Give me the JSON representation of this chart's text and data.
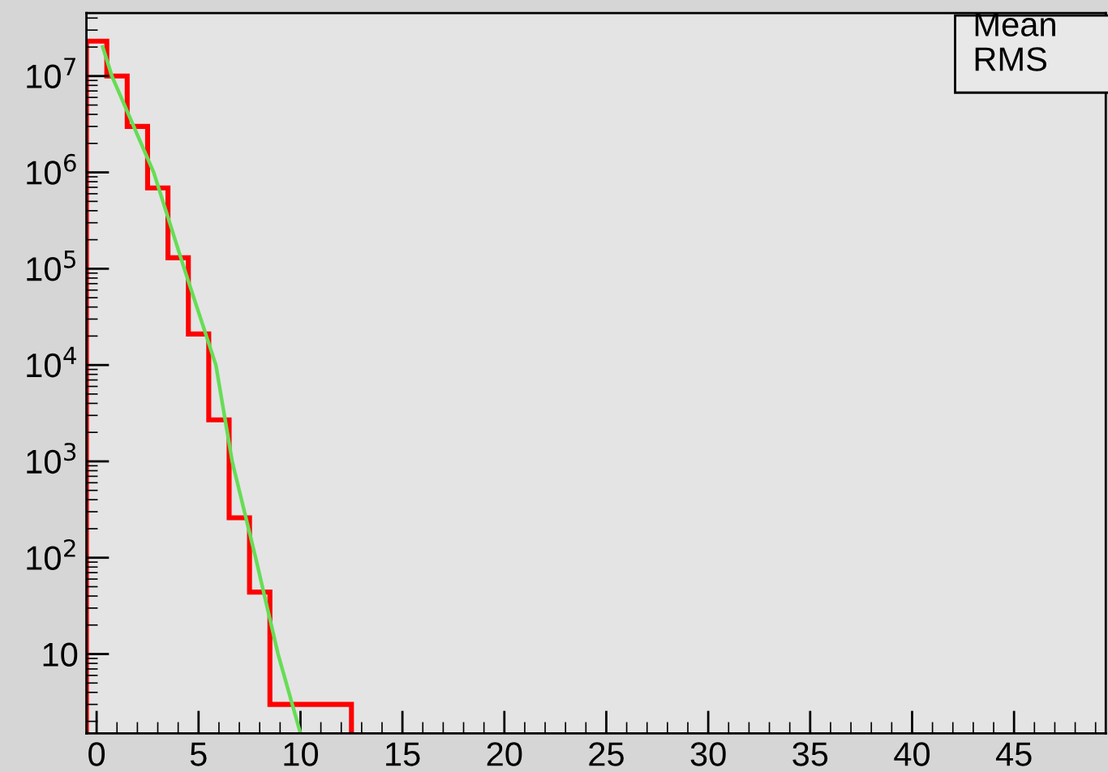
{
  "chart_data": {
    "type": "histogram",
    "bins": [
      -0.5,
      0.5,
      1.5,
      2.5,
      3.5,
      4.5,
      5.5,
      6.5,
      7.5,
      8.5,
      9.5,
      10.5,
      11.5,
      12.5
    ],
    "series": [
      {
        "color": "#ff0000",
        "values": [
          23000000,
          10000000,
          3000000,
          690000,
          130000,
          21000,
          2700,
          260,
          44,
          3,
          3,
          3,
          3
        ]
      },
      {
        "type": "line",
        "color": "#66dd55",
        "x": [
          0.3,
          0.75,
          2.8,
          4.3,
          5.85,
          6.65,
          7.8,
          8.9,
          10.0
        ],
        "values": [
          20000000,
          10000000,
          1000000,
          100000,
          10000,
          1000,
          100,
          10,
          1.5
        ]
      }
    ],
    "log": "y",
    "xlim": [
      -0.5,
      49.5
    ],
    "xticks": [
      0,
      5,
      10,
      15,
      20,
      25,
      30,
      35,
      40,
      45
    ],
    "ylim": [
      1.5,
      45000000
    ],
    "yticks": [
      10,
      {
        "value": 100,
        "label": "10$^{2}$"
      },
      {
        "value": 1000,
        "label": "10$^{3}$"
      },
      {
        "value": 10000,
        "label": "10$^{4}$"
      },
      {
        "value": 100000,
        "label": "10$^{5}$"
      },
      {
        "value": 1000000,
        "label": "10$^{6}$"
      },
      {
        "value": 10000000,
        "label": "10$^{7}$"
      }
    ],
    "grid": false,
    "legend": false,
    "annotations": [
      "Mean",
      "RMS"
    ]
  }
}
